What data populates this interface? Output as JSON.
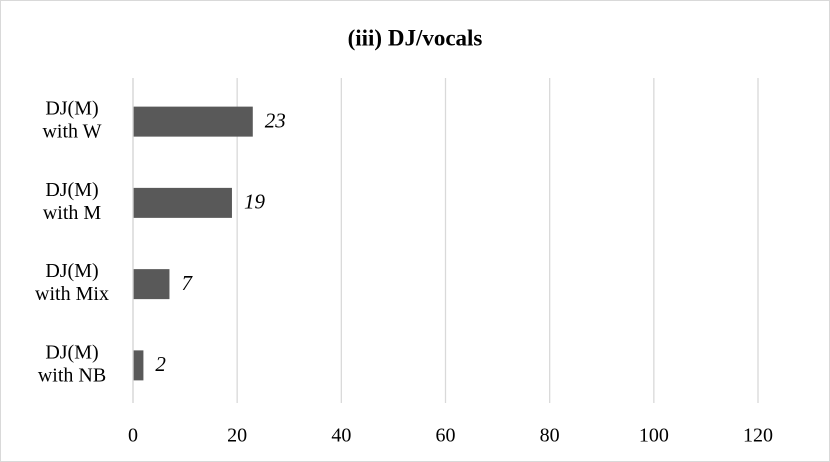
{
  "chart_data": {
    "type": "bar",
    "orientation": "horizontal",
    "title": "(iii) DJ/vocals",
    "categories": [
      "DJ(M) with W",
      "DJ(M) with M",
      "DJ(M) with Mix",
      "DJ(M) with NB"
    ],
    "values": [
      23,
      19,
      7,
      2
    ],
    "color": "#595959",
    "xlim": [
      0,
      120
    ],
    "xticks": [
      0,
      20,
      40,
      60,
      80,
      100,
      120
    ],
    "grid": true
  }
}
